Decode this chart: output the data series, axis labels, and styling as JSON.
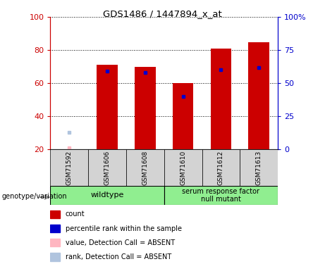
{
  "title": "GDS1486 / 1447894_x_at",
  "samples": [
    "GSM71592",
    "GSM71606",
    "GSM71608",
    "GSM71610",
    "GSM71612",
    "GSM71613"
  ],
  "count_values": [
    null,
    71,
    70,
    60,
    81,
    85
  ],
  "percentile_values": [
    null,
    59,
    58,
    40,
    60,
    62
  ],
  "absent_count_val": 21,
  "absent_rank_val": 30,
  "absent_sample_idx": 0,
  "ylim_left": [
    20,
    100
  ],
  "ylim_right": [
    0,
    100
  ],
  "yticks_left": [
    20,
    40,
    60,
    80,
    100
  ],
  "yticks_right": [
    0,
    25,
    50,
    75,
    100
  ],
  "ytick_labels_left": [
    "20",
    "40",
    "60",
    "80",
    "100"
  ],
  "ytick_labels_right": [
    "0",
    "25",
    "50",
    "75",
    "100%"
  ],
  "wildtype_indices": [
    0,
    1,
    2
  ],
  "mutant_indices": [
    3,
    4,
    5
  ],
  "wildtype_label": "wildtype",
  "mutant_label": "serum response factor\nnull mutant",
  "group_color": "#90EE90",
  "sample_bg_color": "#D3D3D3",
  "bar_color": "#CC0000",
  "percentile_color": "#0000CC",
  "absent_count_color": "#FFB6C1",
  "absent_rank_color": "#B0C4DE",
  "bar_width": 0.55,
  "left_axis_color": "#CC0000",
  "right_axis_color": "#0000CC",
  "legend_items": [
    [
      "#CC0000",
      "count"
    ],
    [
      "#0000CC",
      "percentile rank within the sample"
    ],
    [
      "#FFB6C1",
      "value, Detection Call = ABSENT"
    ],
    [
      "#B0C4DE",
      "rank, Detection Call = ABSENT"
    ]
  ]
}
